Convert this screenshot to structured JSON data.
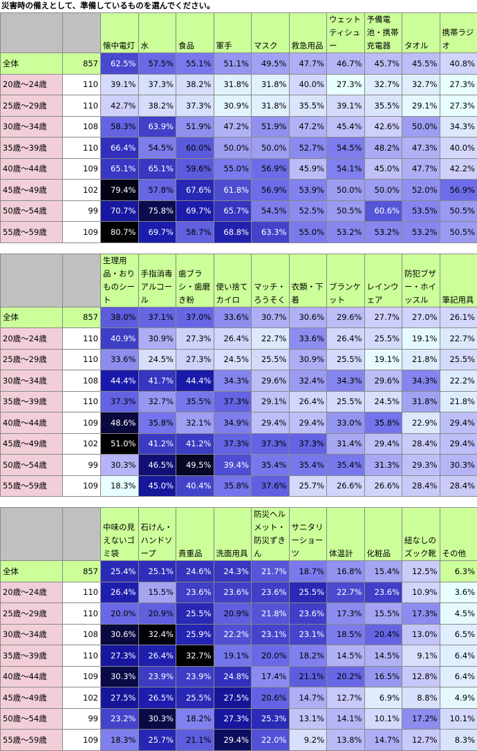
{
  "title": "災害時の備えとして、準備しているものを選んでください。",
  "header_color": "#ccff99",
  "corner_color": "#c0c0c0",
  "total_color": "#ccff99",
  "age_color": "#f2cfd8",
  "tables": [
    {
      "columns": [
        "懐中電灯",
        "水",
        "食品",
        "軍手",
        "マスク",
        "救急用品",
        "ウェットティシュー",
        "予備電池・携帯充電器",
        "タオル",
        "携帯ラジオ"
      ],
      "rows": [
        {
          "label": "全体",
          "n": 857,
          "cells": [
            "62.5%",
            "57.5%",
            "55.1%",
            "51.1%",
            "49.5%",
            "47.7%",
            "46.7%",
            "45.7%",
            "45.5%",
            "40.8%"
          ]
        },
        {
          "label": "20歳～24歳",
          "n": 110,
          "cells": [
            "39.1%",
            "37.3%",
            "38.2%",
            "31.8%",
            "31.8%",
            "40.0%",
            "27.3%",
            "32.7%",
            "32.7%",
            "27.3%"
          ]
        },
        {
          "label": "25歳～29歳",
          "n": 110,
          "cells": [
            "42.7%",
            "38.2%",
            "37.3%",
            "30.9%",
            "31.8%",
            "35.5%",
            "39.1%",
            "35.5%",
            "29.1%",
            "27.3%"
          ]
        },
        {
          "label": "30歳～34歳",
          "n": 108,
          "cells": [
            "58.3%",
            "63.9%",
            "51.9%",
            "47.2%",
            "51.9%",
            "47.2%",
            "45.4%",
            "42.6%",
            "50.0%",
            "34.3%"
          ]
        },
        {
          "label": "35歳～39歳",
          "n": 110,
          "cells": [
            "66.4%",
            "54.5%",
            "60.0%",
            "50.0%",
            "50.0%",
            "52.7%",
            "54.5%",
            "48.2%",
            "47.3%",
            "40.0%"
          ]
        },
        {
          "label": "40歳～44歳",
          "n": 109,
          "cells": [
            "65.1%",
            "65.1%",
            "59.6%",
            "55.0%",
            "56.9%",
            "45.9%",
            "54.1%",
            "45.0%",
            "47.7%",
            "42.2%"
          ]
        },
        {
          "label": "45歳～49歳",
          "n": 102,
          "cells": [
            "79.4%",
            "57.8%",
            "67.6%",
            "61.8%",
            "56.9%",
            "53.9%",
            "50.0%",
            "50.0%",
            "52.0%",
            "56.9%"
          ]
        },
        {
          "label": "50歳～54歳",
          "n": 99,
          "cells": [
            "70.7%",
            "75.8%",
            "69.7%",
            "65.7%",
            "54.5%",
            "52.5%",
            "50.5%",
            "60.6%",
            "53.5%",
            "50.5%"
          ]
        },
        {
          "label": "55歳～59歳",
          "n": 109,
          "cells": [
            "80.7%",
            "69.7%",
            "58.7%",
            "68.8%",
            "63.3%",
            "55.0%",
            "53.2%",
            "53.2%",
            "53.2%",
            "50.5%"
          ]
        }
      ]
    },
    {
      "columns": [
        "生理用品・おりものシート",
        "手指消毒アルコール",
        "歯ブラシ・歯磨き粉",
        "使い捨てカイロ",
        "マッチ・ろうそく",
        "衣類・下着",
        "ブランケット",
        "レインウェア",
        "防犯ブザー・ホイッスル",
        "筆記用具"
      ],
      "rows": [
        {
          "label": "全体",
          "n": 857,
          "cells": [
            "38.0%",
            "37.1%",
            "37.0%",
            "33.6%",
            "30.7%",
            "30.6%",
            "29.6%",
            "27.7%",
            "27.0%",
            "26.1%"
          ]
        },
        {
          "label": "20歳～24歳",
          "n": 110,
          "cells": [
            "40.9%",
            "30.9%",
            "27.3%",
            "26.4%",
            "22.7%",
            "33.6%",
            "26.4%",
            "25.5%",
            "19.1%",
            "22.7%"
          ]
        },
        {
          "label": "25歳～29歳",
          "n": 110,
          "cells": [
            "33.6%",
            "24.5%",
            "27.3%",
            "24.5%",
            "25.5%",
            "30.9%",
            "25.5%",
            "19.1%",
            "21.8%",
            "25.5%"
          ]
        },
        {
          "label": "30歳～34歳",
          "n": 108,
          "cells": [
            "44.4%",
            "41.7%",
            "44.4%",
            "34.3%",
            "29.6%",
            "32.4%",
            "34.3%",
            "29.6%",
            "34.3%",
            "22.2%"
          ]
        },
        {
          "label": "35歳～39歳",
          "n": 110,
          "cells": [
            "37.3%",
            "32.7%",
            "35.5%",
            "37.3%",
            "29.1%",
            "26.4%",
            "25.5%",
            "24.5%",
            "31.8%",
            "21.8%"
          ]
        },
        {
          "label": "40歳～44歳",
          "n": 109,
          "cells": [
            "48.6%",
            "35.8%",
            "32.1%",
            "34.9%",
            "29.4%",
            "29.4%",
            "33.0%",
            "35.8%",
            "22.9%",
            "29.4%"
          ]
        },
        {
          "label": "45歳～49歳",
          "n": 102,
          "cells": [
            "51.0%",
            "41.2%",
            "41.2%",
            "37.3%",
            "37.3%",
            "37.3%",
            "31.4%",
            "29.4%",
            "28.4%",
            "29.4%"
          ]
        },
        {
          "label": "50歳～54歳",
          "n": 99,
          "cells": [
            "30.3%",
            "46.5%",
            "49.5%",
            "39.4%",
            "35.4%",
            "35.4%",
            "35.4%",
            "31.3%",
            "29.3%",
            "30.3%"
          ]
        },
        {
          "label": "55歳～59歳",
          "n": 109,
          "cells": [
            "18.3%",
            "45.0%",
            "40.4%",
            "35.8%",
            "37.6%",
            "25.7%",
            "26.6%",
            "26.6%",
            "28.4%",
            "28.4%"
          ]
        }
      ]
    },
    {
      "columns": [
        "中味の見えないゴミ袋",
        "石けん・ハンドソープ",
        "貴重品",
        "洗面用具",
        "防災ヘルメット・防災ずきん",
        "サニタリーショーツ",
        "体温計",
        "化粧品",
        "紐なしのズック靴",
        "その他"
      ],
      "highlight": {
        "row": 0,
        "col": 9,
        "color": "#ccff99"
      },
      "rows": [
        {
          "label": "全体",
          "n": 857,
          "cells": [
            "25.4%",
            "25.1%",
            "24.6%",
            "24.3%",
            "21.7%",
            "18.7%",
            "16.8%",
            "15.4%",
            "12.5%",
            "6.3%"
          ]
        },
        {
          "label": "20歳～24歳",
          "n": 110,
          "cells": [
            "26.4%",
            "15.5%",
            "23.6%",
            "23.6%",
            "23.6%",
            "25.5%",
            "22.7%",
            "23.6%",
            "10.9%",
            "3.6%"
          ]
        },
        {
          "label": "25歳～29歳",
          "n": 110,
          "cells": [
            "20.0%",
            "20.9%",
            "25.5%",
            "20.9%",
            "21.8%",
            "23.6%",
            "17.3%",
            "15.5%",
            "17.3%",
            "4.5%"
          ]
        },
        {
          "label": "30歳～34歳",
          "n": 108,
          "cells": [
            "30.6%",
            "32.4%",
            "25.9%",
            "22.2%",
            "23.1%",
            "23.1%",
            "18.5%",
            "20.4%",
            "13.0%",
            "6.5%"
          ]
        },
        {
          "label": "35歳～39歳",
          "n": 110,
          "cells": [
            "27.3%",
            "26.4%",
            "32.7%",
            "19.1%",
            "20.0%",
            "18.2%",
            "14.5%",
            "14.5%",
            "9.1%",
            "6.4%"
          ]
        },
        {
          "label": "40歳～44歳",
          "n": 109,
          "cells": [
            "30.3%",
            "23.9%",
            "23.9%",
            "24.8%",
            "17.4%",
            "21.1%",
            "20.2%",
            "16.5%",
            "12.8%",
            "6.4%"
          ]
        },
        {
          "label": "45歳～49歳",
          "n": 102,
          "cells": [
            "27.5%",
            "26.5%",
            "25.5%",
            "27.5%",
            "20.6%",
            "14.7%",
            "12.7%",
            "6.9%",
            "8.8%",
            "4.9%"
          ]
        },
        {
          "label": "50歳～54歳",
          "n": 99,
          "cells": [
            "23.2%",
            "30.3%",
            "18.2%",
            "27.3%",
            "25.3%",
            "13.1%",
            "14.1%",
            "10.1%",
            "17.2%",
            "10.1%"
          ]
        },
        {
          "label": "55歳～59歳",
          "n": 109,
          "cells": [
            "18.3%",
            "25.7%",
            "21.1%",
            "29.4%",
            "22.0%",
            "9.2%",
            "13.8%",
            "14.7%",
            "12.7%",
            "8.3%"
          ]
        }
      ]
    }
  ]
}
